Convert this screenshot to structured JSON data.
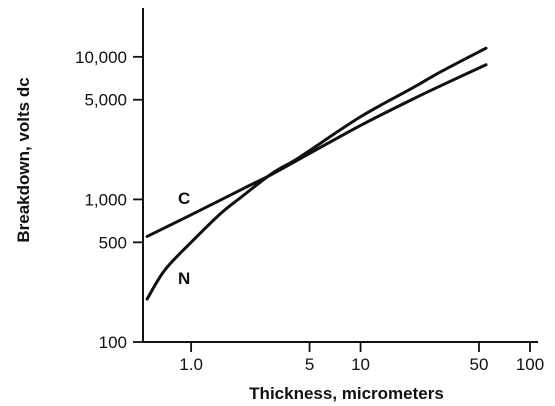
{
  "chart_data": {
    "type": "line",
    "title": "",
    "xlabel": "Thickness, micrometers",
    "ylabel": "Breakdown, volts dc",
    "x_scale": "log",
    "y_scale": "log",
    "xlim": [
      0.52,
      100
    ],
    "ylim": [
      100,
      22000
    ],
    "x_ticks": [
      {
        "value": 1,
        "label": "1.0"
      },
      {
        "value": 5,
        "label": "5"
      },
      {
        "value": 10,
        "label": "10"
      },
      {
        "value": 50,
        "label": "50"
      },
      {
        "value": 100,
        "label": "100"
      }
    ],
    "y_ticks": [
      {
        "value": 100,
        "label": "100"
      },
      {
        "value": 500,
        "label": "500"
      },
      {
        "value": 1000,
        "label": "1,000"
      },
      {
        "value": 5000,
        "label": "5,000"
      },
      {
        "value": 10000,
        "label": "10,000"
      }
    ],
    "grid": false,
    "legend": "none",
    "line_color": "#111111",
    "series": [
      {
        "name": "C",
        "x": [
          0.55,
          1,
          2,
          3,
          5,
          10,
          20,
          30,
          55
        ],
        "y": [
          550,
          780,
          1180,
          1500,
          2100,
          3300,
          5000,
          6300,
          8800
        ]
      },
      {
        "name": "N",
        "x": [
          0.55,
          0.7,
          1,
          1.5,
          2,
          3,
          4,
          5,
          10,
          20,
          30,
          55
        ],
        "y": [
          200,
          320,
          500,
          800,
          1050,
          1520,
          1850,
          2200,
          3800,
          6000,
          7900,
          11500
        ]
      }
    ]
  }
}
